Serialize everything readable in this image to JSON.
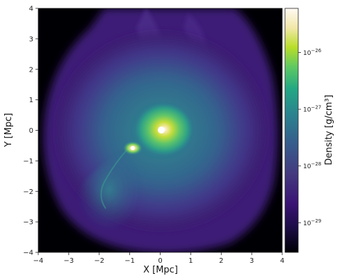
{
  "chart_data": {
    "type": "heatmap",
    "title": "",
    "xlabel": "X [Mpc]",
    "ylabel": "Y [Mpc]",
    "xlim": [
      -4,
      4
    ],
    "ylim": [
      -4,
      4
    ],
    "x_ticks": [
      "−4",
      "−3",
      "−2",
      "−1",
      "0",
      "1",
      "2",
      "3",
      "4"
    ],
    "y_ticks": [
      "−4",
      "−3",
      "−2",
      "−1",
      "0",
      "1",
      "2",
      "3",
      "4"
    ],
    "colorbar": {
      "label": "Density [g/cm³]",
      "scale": "log",
      "range": [
        3e-30,
        6e-26
      ],
      "ticks": [
        {
          "value": 1e-29,
          "mantissa": "10",
          "exp": "−29"
        },
        {
          "value": 1e-28,
          "mantissa": "10",
          "exp": "−28"
        },
        {
          "value": 1e-27,
          "mantissa": "10",
          "exp": "−27"
        },
        {
          "value": 1e-26,
          "mantissa": "10",
          "exp": "−26"
        }
      ]
    },
    "colormap_stops": [
      "#000004",
      "#2a0b4f",
      "#45207a",
      "#3b4f8c",
      "#2d7f8e",
      "#24a884",
      "#5fc968",
      "#b5de2b",
      "#f4e8a0",
      "#fffaf2"
    ],
    "features": [
      {
        "name": "main halo core",
        "x": 0.0,
        "y": 0.0,
        "density_level": "peak"
      },
      {
        "name": "secondary halo core",
        "x": -0.95,
        "y": -0.6,
        "density_level": "high"
      }
    ]
  }
}
